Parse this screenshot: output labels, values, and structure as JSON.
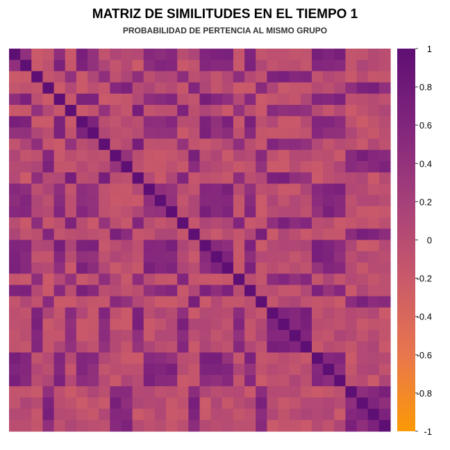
{
  "chart_data": {
    "type": "heatmap",
    "title": "MATRIZ DE SIMILITUDES EN EL TIEMPO 1",
    "subtitle": "PROBABILIDAD DE PERTENCIA AL MISMO GRUPO",
    "xlabel": "",
    "ylabel": "",
    "n_rows": 34,
    "n_cols": 34,
    "diagonal_value": 1,
    "values_encoding": "similarity matrix; group structure: A = indices 0-1,4,6-7,12-14,17-19,21,27-29; B = 2,5,8,11,15,20,23-26; C = 3,9-10,16,22,30-33",
    "within_group_similarity": 0.55,
    "between_group_similarity": -0.05,
    "colorbar": {
      "min": -1,
      "max": 1,
      "ticks": [
        "1",
        "0.8",
        "0.6",
        "0.4",
        "0.2",
        "0",
        "-0.2",
        "-0.4",
        "-0.6",
        "-0.8",
        "-1"
      ],
      "colors": [
        "#fb9a06",
        "#e8764d",
        "#c9596a",
        "#a6407a",
        "#81257d",
        "#5e0f73"
      ]
    },
    "grid": false,
    "legend_position": "right"
  }
}
